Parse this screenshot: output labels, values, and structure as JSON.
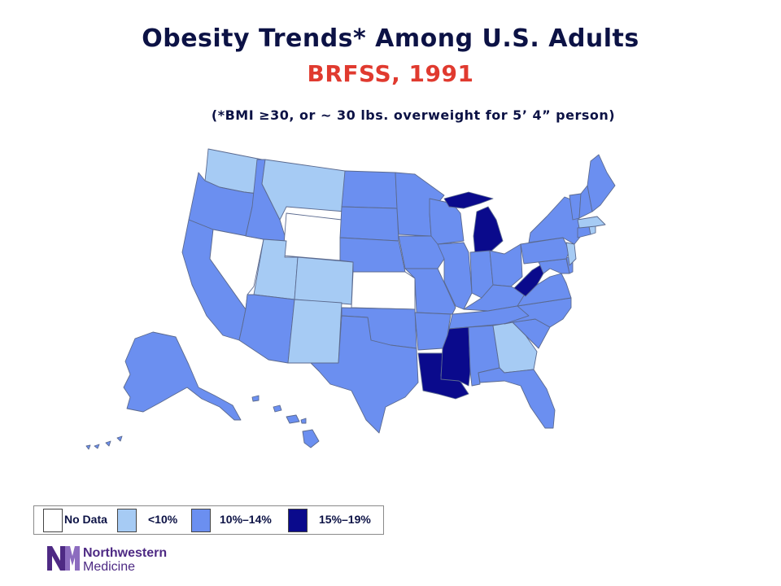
{
  "title": "Obesity Trends* Among U.S. Adults",
  "subtitle": "BRFSS, 1991",
  "footnote": "(*BMI ≥30, or ~ 30 lbs. overweight for 5’ 4” person)",
  "colors": {
    "title": "#0c1245",
    "subtitle": "#e03a2f",
    "no_data": "#ffffff",
    "lt10": "#a6cbf4",
    "r10_14": "#6b8ff0",
    "r15_19": "#0a0a8c",
    "state_border": "#5b6a8f"
  },
  "legend": [
    {
      "label": "No Data",
      "category": "no_data"
    },
    {
      "label": "<10%",
      "category": "lt10"
    },
    {
      "label": "10%–14%",
      "category": "r10_14"
    },
    {
      "label": "15%–19%",
      "category": "r15_19"
    }
  ],
  "states": {
    "WA": "lt10",
    "OR": "r10_14",
    "CA": "r10_14",
    "NV": "no_data",
    "ID": "r10_14",
    "MT": "lt10",
    "WY": "no_data",
    "UT": "lt10",
    "CO": "lt10",
    "AZ": "r10_14",
    "NM": "lt10",
    "ND": "r10_14",
    "SD": "r10_14",
    "NE": "r10_14",
    "KS": "no_data",
    "OK": "r10_14",
    "TX": "r10_14",
    "MN": "r10_14",
    "IA": "r10_14",
    "MO": "r10_14",
    "AR": "r10_14",
    "LA": "r15_19",
    "WI": "r10_14",
    "IL": "r10_14",
    "MI": "r15_19",
    "IN": "r10_14",
    "OH": "r10_14",
    "KY": "r10_14",
    "TN": "r10_14",
    "MS": "r15_19",
    "AL": "r10_14",
    "GA": "lt10",
    "FL": "r10_14",
    "SC": "r10_14",
    "NC": "r10_14",
    "VA": "r10_14",
    "WV": "r15_19",
    "MD": "r10_14",
    "DE": "r10_14",
    "PA": "r10_14",
    "NJ": "lt10",
    "NY": "r10_14",
    "CT": "r10_14",
    "RI": "lt10",
    "MA": "lt10",
    "VT": "r10_14",
    "NH": "r10_14",
    "ME": "r10_14",
    "AK": "r10_14",
    "HI": "r10_14"
  },
  "logo": {
    "line1": "Northwestern",
    "line2": "Medicine"
  }
}
